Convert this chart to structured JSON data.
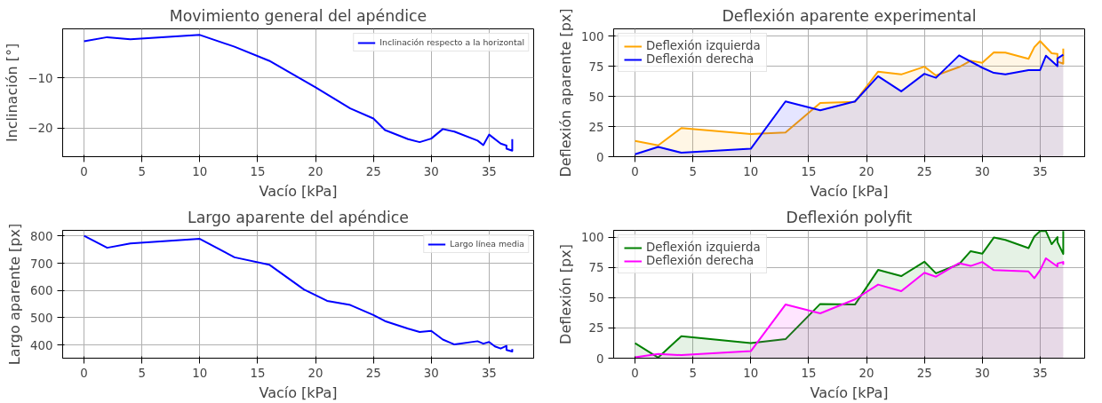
{
  "chart_data": [
    {
      "type": "line",
      "title": "Movimiento general del apéndice",
      "xlabel": "Vacío [kPa]",
      "ylabel": "Inclinación [°]",
      "xlim": [
        -1.85,
        38.85
      ],
      "ylim": [
        -25.7,
        -0.24
      ],
      "xticks": [
        0,
        5,
        10,
        15,
        20,
        25,
        30,
        35
      ],
      "yticks": [
        -10,
        -20
      ],
      "grid": true,
      "legend": "top right",
      "series": [
        {
          "name": "Inclinación respecto a la horizontal",
          "color": "#0000ff",
          "x": [
            0,
            2,
            4,
            10,
            13,
            16,
            20,
            23,
            25,
            26,
            28,
            29,
            30,
            31,
            32,
            34,
            34.5,
            35,
            36,
            36.5,
            36.5,
            37,
            37
          ],
          "values": [
            -2.7,
            -1.9,
            -2.3,
            -1.45,
            -3.8,
            -6.6,
            -11.9,
            -16.1,
            -18.1,
            -20.4,
            -22.2,
            -22.8,
            -22.1,
            -20.2,
            -20.7,
            -22.5,
            -23.4,
            -21.3,
            -23.1,
            -23.5,
            -24.1,
            -24.5,
            -22.2
          ]
        }
      ]
    },
    {
      "type": "area",
      "title": "Deflexión aparente experimental",
      "xlabel": "Vacío [kPa]",
      "ylabel": "Deflexión aparente [px]",
      "xlim": [
        -1.85,
        38.85
      ],
      "ylim": [
        0,
        106
      ],
      "xticks": [
        0,
        5,
        10,
        15,
        20,
        25,
        30,
        35
      ],
      "yticks": [
        0,
        25,
        50,
        75,
        100
      ],
      "grid": true,
      "legend": "top left",
      "series": [
        {
          "name": "Deflexión izquierda",
          "color": "#ffa500",
          "x": [
            0,
            2,
            4,
            10,
            13,
            16,
            19,
            21,
            23,
            25,
            26,
            28,
            29,
            30,
            31,
            32,
            34,
            34.5,
            35,
            36,
            36.5,
            36.5,
            37,
            37
          ],
          "values": [
            13,
            9.4,
            23.7,
            18.8,
            20,
            44.5,
            45.5,
            70.5,
            68.2,
            74.6,
            67.4,
            74.3,
            79.6,
            77.9,
            86.5,
            86.3,
            81.2,
            90.8,
            95.9,
            85.8,
            85.2,
            78.9,
            77.1,
            89.6
          ]
        },
        {
          "name": "Deflexión derecha",
          "color": "#0000ff",
          "x": [
            0,
            2,
            4,
            10,
            13,
            16,
            19,
            21,
            23,
            25,
            26,
            28,
            30,
            31,
            32,
            34,
            35,
            35.5,
            36.5,
            36.5,
            37
          ],
          "values": [
            2,
            8.1,
            3.3,
            6.6,
            45.8,
            38.4,
            45.8,
            66.7,
            54.2,
            68.7,
            65.4,
            84,
            73.8,
            69.5,
            68.2,
            71.8,
            71.8,
            83.7,
            75,
            81.4,
            84.5
          ]
        }
      ]
    },
    {
      "type": "line",
      "title": "Largo aparente del apéndice",
      "xlabel": "Vacío [kPa]",
      "ylabel": "Largo aparente [px]",
      "xlim": [
        -1.85,
        38.85
      ],
      "ylim": [
        351.7,
        821
      ],
      "xticks": [
        0,
        5,
        10,
        15,
        20,
        25,
        30,
        35
      ],
      "yticks": [
        400,
        500,
        600,
        700,
        800
      ],
      "grid": true,
      "legend": "top right",
      "series": [
        {
          "name": "Largo línea media",
          "color": "#0000ff",
          "x": [
            0,
            2,
            4,
            10,
            13,
            16,
            19,
            21,
            23,
            25,
            26,
            28,
            29,
            30,
            31,
            32,
            34,
            34.5,
            35,
            35.5,
            36,
            36.5,
            36.5,
            37,
            37
          ],
          "values": [
            801,
            757,
            773,
            790,
            722,
            695,
            604,
            562,
            547,
            510,
            488,
            460,
            448,
            452,
            420,
            402,
            414,
            405,
            411,
            395,
            387,
            397,
            382,
            376,
            385
          ]
        }
      ]
    },
    {
      "type": "area",
      "title": "Deflexión polyfit",
      "xlabel": "Vacío [kPa]",
      "ylabel": "Deflexión [px]",
      "xlim": [
        -1.85,
        38.85
      ],
      "ylim": [
        0,
        105.6
      ],
      "xticks": [
        0,
        5,
        10,
        15,
        20,
        25,
        30,
        35
      ],
      "yticks": [
        0,
        25,
        50,
        75,
        100
      ],
      "grid": true,
      "legend": "top left",
      "series": [
        {
          "name": "Deflexión izquierda",
          "color": "#008000",
          "x": [
            0,
            2,
            4,
            10,
            13,
            16,
            19,
            21,
            23,
            25,
            26,
            28,
            29,
            30,
            31,
            32,
            34,
            34.5,
            35,
            35.5,
            36,
            36.5,
            36.5,
            37,
            37
          ],
          "values": [
            12.4,
            0.5,
            18.2,
            12.4,
            15.7,
            44.8,
            44.3,
            72.9,
            67.8,
            79.7,
            70.1,
            77.7,
            88.4,
            86.3,
            99.7,
            97.7,
            90.9,
            100.5,
            105,
            105,
            94.2,
            100,
            96,
            86.1,
            105
          ]
        },
        {
          "name": "Deflexión derecha",
          "color": "#ff00ff",
          "x": [
            0,
            2,
            4,
            10,
            13,
            16,
            19,
            21,
            23,
            25,
            26,
            28,
            29,
            30,
            31,
            34,
            34.5,
            35,
            35.5,
            36.5,
            36.5,
            37,
            37
          ],
          "values": [
            0.8,
            3.5,
            2.5,
            5.8,
            44.3,
            37,
            48.6,
            60.8,
            55.4,
            70.6,
            67.3,
            78.5,
            76.2,
            79.5,
            72.7,
            71.6,
            66.1,
            72.7,
            82.5,
            75.7,
            78.2,
            79.5,
            77.2
          ]
        }
      ]
    }
  ]
}
